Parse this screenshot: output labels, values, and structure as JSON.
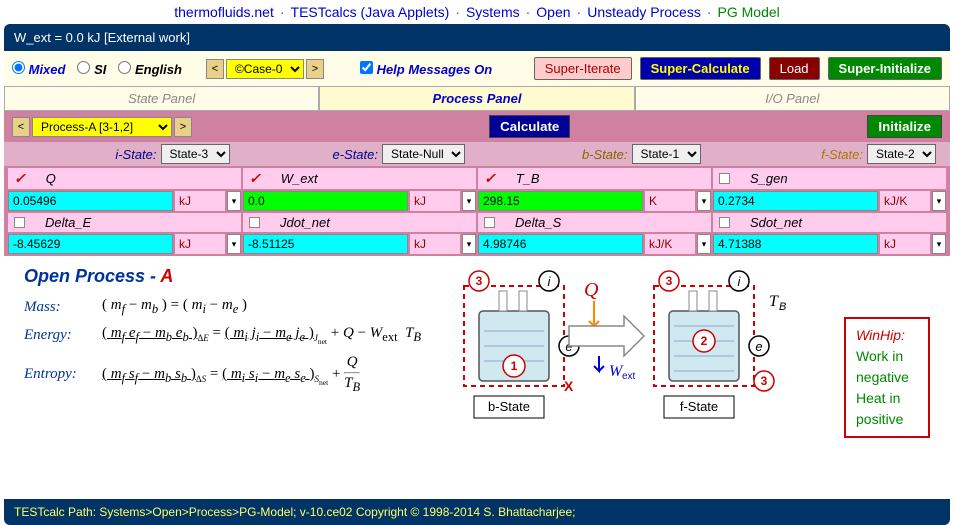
{
  "nav": {
    "items": [
      "thermofluids.net",
      "TESTcalcs (Java Applets)",
      "Systems",
      "Open",
      "Unsteady Process",
      "PG Model"
    ],
    "active_index": 5
  },
  "status": "W_ext = 0.0  kJ [External work]",
  "toolbar": {
    "units": [
      "Mixed",
      "SI",
      "English"
    ],
    "units_selected": 0,
    "case": "©Case-0",
    "help_label": "Help Messages On",
    "help_checked": true,
    "btn_super_iterate": "Super-Iterate",
    "btn_super_calc": "Super-Calculate",
    "btn_load": "Load",
    "btn_super_init": "Super-Initialize"
  },
  "tabs": {
    "items": [
      "State Panel",
      "Process Panel",
      "I/O Panel"
    ],
    "active": 1
  },
  "process_bar": {
    "process": "Process-A [3-1,2]",
    "btn_calc": "Calculate",
    "btn_init": "Initialize"
  },
  "states": {
    "i": {
      "label": "i-State:",
      "value": "State-3"
    },
    "e": {
      "label": "e-State:",
      "value": "State-Null"
    },
    "b": {
      "label": "b-State:",
      "value": "State-1"
    },
    "f": {
      "label": "f-State:",
      "value": "State-2"
    }
  },
  "vars": [
    {
      "name": "Q",
      "checked": true,
      "value": "0.05496",
      "unit": "kJ",
      "bg": "cyan"
    },
    {
      "name": "W_ext",
      "checked": true,
      "value": "0.0",
      "unit": "kJ",
      "bg": "green"
    },
    {
      "name": "T_B",
      "checked": true,
      "value": "298.15",
      "unit": "K",
      "bg": "green"
    },
    {
      "name": "S_gen",
      "checked": false,
      "value": "0.2734",
      "unit": "kJ/K",
      "bg": "cyan"
    },
    {
      "name": "Delta_E",
      "checked": false,
      "value": "-8.45629",
      "unit": "kJ",
      "bg": "cyan"
    },
    {
      "name": "Jdot_net",
      "checked": false,
      "value": "-8.51125",
      "unit": "kJ",
      "bg": "cyan"
    },
    {
      "name": "Delta_S",
      "checked": false,
      "value": "4.98746",
      "unit": "kJ/K",
      "bg": "cyan"
    },
    {
      "name": "Sdot_net",
      "checked": false,
      "value": "4.71388",
      "unit": "kJ",
      "bg": "cyan"
    }
  ],
  "equations": {
    "title_pre": "Open Process - ",
    "title_a": "A",
    "mass_label": "Mass:",
    "energy_label": "Energy:",
    "entropy_label": "Entropy:"
  },
  "hint": {
    "title": "WinHip:",
    "line1": "Work in negative",
    "line2": "Heat in positive"
  },
  "diagram_labels": {
    "b_state": "b-State",
    "f_state": "f-State",
    "q": "Q",
    "w": "Wext",
    "tb": "TB",
    "x": "X",
    "i": "i",
    "e": "e"
  },
  "footer": "TESTcalc Path:  Systems>Open>Process>PG-Model; v-10.ce02 Copyright © 1998-2014 S. Bhattacharjee;"
}
